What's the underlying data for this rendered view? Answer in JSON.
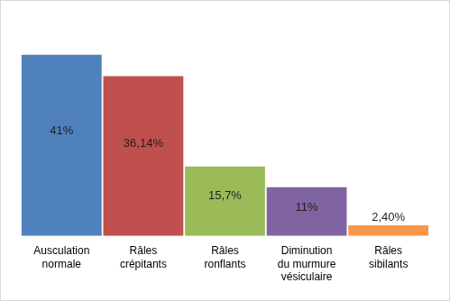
{
  "chart_data": {
    "type": "bar",
    "categories": [
      "Ausculation normale",
      "Râles crépitants",
      "Râles ronflants",
      "Diminution du murmure vésiculaire",
      "Râles sibilants"
    ],
    "values": [
      41,
      36.14,
      15.7,
      11,
      2.4
    ],
    "value_labels": [
      "41%",
      "36,14%",
      "15,7%",
      "11%",
      "2,40%"
    ],
    "colors": [
      "#4f81bd",
      "#c0504d",
      "#9bbb59",
      "#8064a2",
      "#f79646"
    ],
    "data_labels": true,
    "tick_labels": "x",
    "grid": false
  }
}
